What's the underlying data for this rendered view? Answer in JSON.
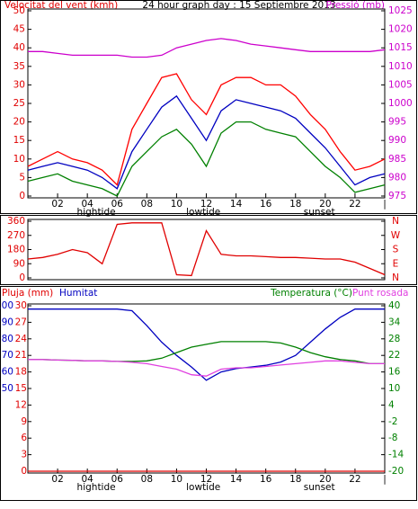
{
  "chart_data": [
    {
      "type": "line",
      "title": "24 hour graph day : 15 Septiembre 2013",
      "ylabel": "Velocitat del vent (kmh)",
      "ylabel_color": "#e00000",
      "y2label": "Pressió (mb)",
      "y2label_color": "#cc00cc",
      "x": [
        0,
        1,
        2,
        3,
        4,
        5,
        6,
        7,
        8,
        9,
        10,
        11,
        12,
        13,
        14,
        15,
        16,
        17,
        18,
        19,
        20,
        21,
        22,
        23,
        24
      ],
      "xlim": [
        0,
        24
      ],
      "xticks": [
        {
          "value": 2,
          "label": "02"
        },
        {
          "value": 4,
          "label": "04"
        },
        {
          "value": 6,
          "label": "06"
        },
        {
          "value": 8,
          "label": "08"
        },
        {
          "value": 10,
          "label": "10"
        },
        {
          "value": 12,
          "label": "12"
        },
        {
          "value": 14,
          "label": "14"
        },
        {
          "value": 16,
          "label": "16"
        },
        {
          "value": 18,
          "label": "18"
        },
        {
          "value": 20,
          "label": "20"
        },
        {
          "value": 22,
          "label": "22"
        },
        {
          "value": 24,
          "label": "|"
        }
      ],
      "events": [
        {
          "value": 4.6,
          "label": "hightide"
        },
        {
          "value": 11.8,
          "label": "lowtide"
        },
        {
          "value": 19.6,
          "label": "sunset"
        }
      ],
      "ylim": [
        0,
        50
      ],
      "yticks": [
        0,
        5,
        10,
        15,
        20,
        25,
        30,
        35,
        40,
        45,
        50
      ],
      "ytick_color": "#e00000",
      "y2lim": [
        975,
        1025
      ],
      "y2ticks": [
        975,
        980,
        985,
        990,
        995,
        1000,
        1005,
        1010,
        1015,
        1020,
        1025
      ],
      "y2tick_color": "#cc00cc",
      "series": [
        {
          "color": "#ff0000",
          "values": [
            8,
            10,
            12,
            10,
            9,
            7,
            3,
            18,
            25,
            32,
            33,
            26,
            22,
            30,
            32,
            32,
            30,
            30,
            27,
            22,
            18,
            12,
            7,
            8,
            10
          ]
        },
        {
          "color": "#0000c0",
          "values": [
            7,
            8,
            9,
            8,
            7,
            5,
            2,
            12,
            18,
            24,
            27,
            21,
            15,
            23,
            26,
            25,
            24,
            23,
            21,
            17,
            13,
            8,
            3,
            5,
            6
          ]
        },
        {
          "color": "#008000",
          "values": [
            4,
            5,
            6,
            4,
            3,
            2,
            0,
            8,
            12,
            16,
            18,
            14,
            8,
            17,
            20,
            20,
            18,
            17,
            16,
            12,
            8,
            5,
            1,
            2,
            3
          ]
        },
        {
          "color": "#cc00cc",
          "axis": "y2",
          "values": [
            1014,
            1014,
            1013.5,
            1013,
            1013,
            1013,
            1013,
            1012.5,
            1012.5,
            1013,
            1015,
            1016,
            1017,
            1017.5,
            1017,
            1016,
            1015.5,
            1015,
            1014.5,
            1014,
            1014,
            1014,
            1014,
            1014,
            1014.5
          ]
        }
      ]
    },
    {
      "type": "line",
      "x": [
        0,
        1,
        2,
        3,
        4,
        5,
        6,
        7,
        8,
        9,
        10,
        11,
        12,
        13,
        14,
        15,
        16,
        17,
        18,
        19,
        20,
        21,
        22,
        23,
        24
      ],
      "xlim": [
        0,
        24
      ],
      "ylim": [
        0,
        360
      ],
      "yticks": [
        0,
        90,
        180,
        270,
        360
      ],
      "ytick_color": "#e00000",
      "y2lim": [
        0,
        360
      ],
      "y2ticks": [
        {
          "value": 360,
          "label": "N"
        },
        {
          "value": 270,
          "label": "W"
        },
        {
          "value": 180,
          "label": "S"
        },
        {
          "value": 90,
          "label": "E"
        },
        {
          "value": 0,
          "label": "N"
        }
      ],
      "y2tick_color": "#e00000",
      "series": [
        {
          "color": "#e00000",
          "values": [
            120,
            130,
            150,
            180,
            160,
            90,
            340,
            350,
            350,
            350,
            20,
            15,
            300,
            150,
            140,
            140,
            135,
            130,
            130,
            125,
            120,
            120,
            100,
            60,
            20
          ]
        }
      ]
    },
    {
      "type": "line",
      "x": [
        0,
        1,
        2,
        3,
        4,
        5,
        6,
        7,
        8,
        9,
        10,
        11,
        12,
        13,
        14,
        15,
        16,
        17,
        18,
        19,
        20,
        21,
        22,
        23,
        24
      ],
      "xlim": [
        0,
        24
      ],
      "xticks": [
        {
          "value": 2,
          "label": "02"
        },
        {
          "value": 4,
          "label": "04"
        },
        {
          "value": 6,
          "label": "06"
        },
        {
          "value": 8,
          "label": "08"
        },
        {
          "value": 10,
          "label": "10"
        },
        {
          "value": 12,
          "label": "12"
        },
        {
          "value": 14,
          "label": "14"
        },
        {
          "value": 16,
          "label": "16"
        },
        {
          "value": 18,
          "label": "18"
        },
        {
          "value": 20,
          "label": "20"
        },
        {
          "value": 22,
          "label": "22"
        },
        {
          "value": 24,
          "label": "|"
        }
      ],
      "events": [
        {
          "value": 4.6,
          "label": "hightide"
        },
        {
          "value": 11.8,
          "label": "lowtide"
        },
        {
          "value": 19.6,
          "label": "sunset"
        }
      ],
      "ylim": [
        0,
        30
      ],
      "yticks": [
        0,
        3,
        6,
        9,
        12,
        15,
        18,
        21,
        24,
        27,
        30
      ],
      "ytick_color": "#e00000",
      "y3lim": [
        0,
        100
      ],
      "y3ticks": [
        50,
        60,
        70,
        80,
        90,
        100
      ],
      "y3tick_color": "#0000c0",
      "y2lim": [
        -20,
        40
      ],
      "y2ticks": [
        -20,
        -14,
        -8,
        -2,
        4,
        10,
        16,
        22,
        28,
        34,
        40
      ],
      "y2tick_color": "#008000",
      "series": [
        {
          "name": "Pluja (mm)",
          "color": "#e00000",
          "axis": "y",
          "values": [
            0,
            0,
            0,
            0,
            0,
            0,
            0,
            0,
            0,
            0,
            0,
            0,
            0,
            0,
            0,
            0,
            0,
            0,
            0,
            0,
            0,
            0,
            0,
            0,
            0
          ]
        },
        {
          "name": "Humitat",
          "color": "#0000c0",
          "axis": "y3",
          "values": [
            98,
            98,
            98,
            98,
            98,
            98,
            98,
            97,
            88,
            78,
            70,
            63,
            55,
            60,
            62,
            63,
            64,
            66,
            70,
            78,
            86,
            93,
            98,
            98,
            98
          ]
        },
        {
          "name": "Temperatura (°C)",
          "color": "#008000",
          "axis": "y2",
          "values": [
            20.5,
            20.5,
            20.3,
            20.2,
            20,
            20,
            19.8,
            19.8,
            20,
            21,
            23,
            25,
            26,
            27,
            27,
            27,
            27,
            26.5,
            25,
            23,
            21.5,
            20.5,
            20,
            19,
            19
          ]
        },
        {
          "name": "Punt rosada",
          "color": "#e040e0",
          "axis": "y2",
          "values": [
            20.5,
            20.5,
            20.3,
            20.2,
            20,
            20,
            19.8,
            19.5,
            19,
            18,
            17,
            15,
            14.5,
            17,
            17.5,
            17.5,
            18,
            18.5,
            19,
            19.5,
            20,
            20,
            19.5,
            19,
            19
          ]
        }
      ]
    }
  ]
}
